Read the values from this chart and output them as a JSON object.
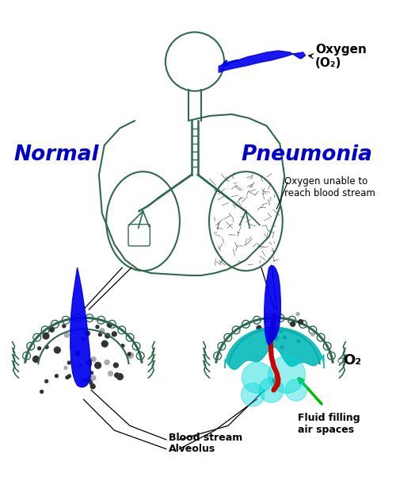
{
  "bg_color": "#ffffff",
  "normal_label": "Normal",
  "pneumonia_label": "Pneumonia",
  "oxygen_label": "Oxygen\n(O₂)",
  "oxygen_unable_label": "Oxygen unable to\nreach blood stream",
  "blood_stream_label": "Blood stream",
  "alveolus_label": "Alveolus",
  "fluid_label": "Fluid filling\nair spaces",
  "o2_label": "O₂",
  "body_color": "#2d6a4f",
  "fluid_color": "#00b8b8",
  "blue_stream_color": "#0000ee",
  "red_vessel_color": "#cc0000",
  "green_arrow_color": "#00bb00",
  "label_color": "#000000",
  "normal_color": "#0000cc",
  "pneumonia_color": "#0000cc"
}
